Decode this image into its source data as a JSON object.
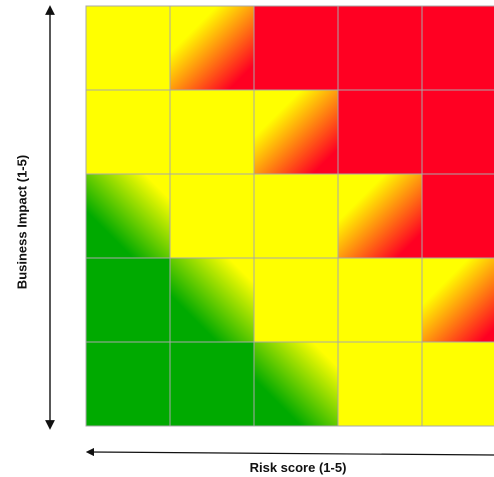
{
  "chart_data": {
    "type": "heatmap",
    "title": "",
    "xlabel": "Risk score (1-5)",
    "ylabel": "Business Impact (1-5)",
    "rows": 5,
    "cols": 5,
    "cells": [
      [
        "yellow",
        "yellow-red",
        "red",
        "red",
        "red"
      ],
      [
        "yellow",
        "yellow",
        "yellow-red",
        "red",
        "red"
      ],
      [
        "green-yellow",
        "yellow",
        "yellow",
        "yellow-red",
        "red"
      ],
      [
        "green",
        "green-yellow",
        "yellow",
        "yellow",
        "yellow-red"
      ],
      [
        "green",
        "green",
        "green-yellow",
        "yellow",
        "yellow"
      ]
    ],
    "grid": true,
    "legend": "none"
  },
  "colors": {
    "red": "#ff0022",
    "yellow": "#ffff00",
    "green": "#00aa00",
    "grid": "#a8a8a8",
    "axis": "#111111"
  }
}
